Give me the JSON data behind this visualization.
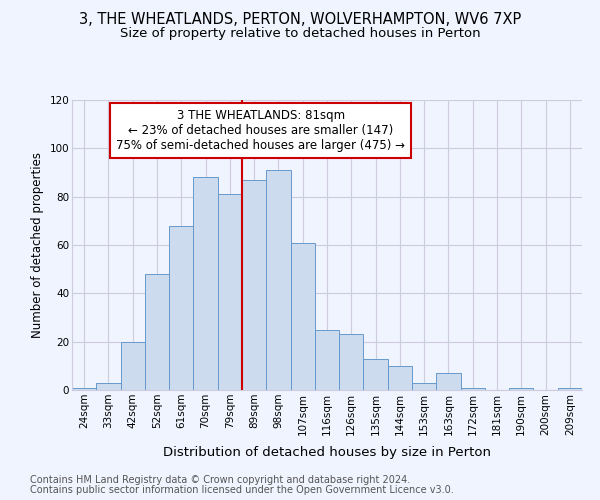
{
  "title1": "3, THE WHEATLANDS, PERTON, WOLVERHAMPTON, WV6 7XP",
  "title2": "Size of property relative to detached houses in Perton",
  "xlabel": "Distribution of detached houses by size in Perton",
  "ylabel": "Number of detached properties",
  "bar_labels": [
    "24sqm",
    "33sqm",
    "42sqm",
    "52sqm",
    "61sqm",
    "70sqm",
    "79sqm",
    "89sqm",
    "98sqm",
    "107sqm",
    "116sqm",
    "126sqm",
    "135sqm",
    "144sqm",
    "153sqm",
    "163sqm",
    "172sqm",
    "181sqm",
    "190sqm",
    "200sqm",
    "209sqm"
  ],
  "bar_values": [
    1,
    3,
    20,
    48,
    68,
    88,
    81,
    87,
    91,
    61,
    25,
    23,
    13,
    10,
    3,
    7,
    1,
    0,
    1,
    0,
    1
  ],
  "bar_color": "#ccdcee",
  "bar_edge_color": "#6699cc",
  "annotation_text": "3 THE WHEATLANDS: 81sqm\n← 23% of detached houses are smaller (147)\n75% of semi-detached houses are larger (475) →",
  "annotation_box_color": "white",
  "annotation_box_edge": "#cc0000",
  "ylim": [
    0,
    120
  ],
  "yticks": [
    0,
    20,
    40,
    60,
    80,
    100,
    120
  ],
  "grid_color": "#ccccdd",
  "footer1": "Contains HM Land Registry data © Crown copyright and database right 2024.",
  "footer2": "Contains public sector information licensed under the Open Government Licence v3.0.",
  "background_color": "#f0f4ff",
  "vline_color": "#cc0000",
  "title1_fontsize": 10.5,
  "title2_fontsize": 9.5,
  "xlabel_fontsize": 9.5,
  "ylabel_fontsize": 8.5,
  "tick_fontsize": 7.5,
  "annotation_fontsize": 8.5,
  "footer_fontsize": 7
}
